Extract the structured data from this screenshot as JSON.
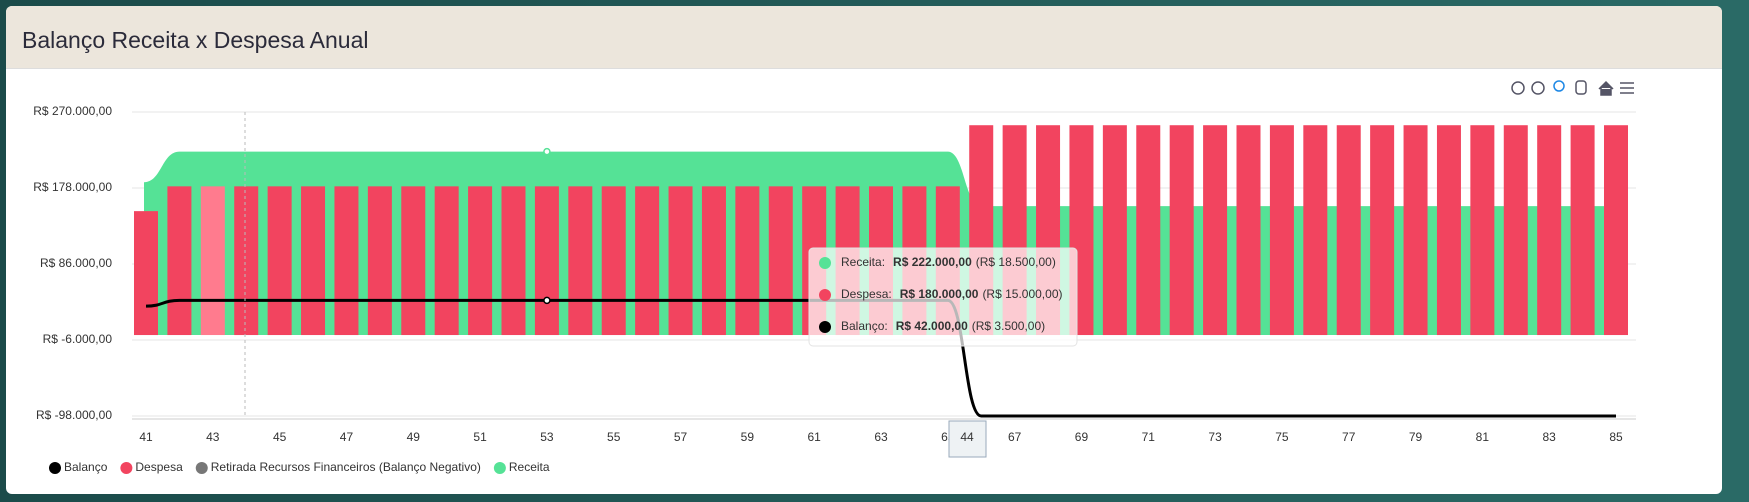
{
  "header": {
    "title": "Balanço Receita x Despesa Anual"
  },
  "chart_data": {
    "type": "bar",
    "categories": [
      41,
      null,
      43,
      null,
      45,
      null,
      47,
      null,
      49,
      null,
      51,
      null,
      53,
      null,
      55,
      null,
      57,
      null,
      59,
      null,
      61,
      null,
      63,
      null,
      65,
      null,
      67,
      null,
      69,
      null,
      71,
      null,
      73,
      null,
      75,
      null,
      77,
      null,
      79,
      null,
      81,
      null,
      83,
      null,
      85
    ],
    "ylim": [
      -98000,
      270000
    ],
    "yticks": [
      {
        "value": -98000,
        "label": "R$ -98.000,00"
      },
      {
        "value": -6000,
        "label": "R$ -6.000,00"
      },
      {
        "value": 86000,
        "label": "R$ 86.000,00"
      },
      {
        "value": 178000,
        "label": "R$ 178.000,00"
      },
      {
        "value": 270000,
        "label": "R$ 270.000,00"
      }
    ],
    "grid": true,
    "legend": "bottom-left",
    "series": [
      {
        "name": "Balanço",
        "type": "line",
        "color": "#000000",
        "values": [
          35000,
          42000,
          42000,
          42000,
          42000,
          42000,
          42000,
          42000,
          42000,
          42000,
          42000,
          42000,
          42000,
          42000,
          42000,
          42000,
          42000,
          42000,
          42000,
          42000,
          42000,
          42000,
          42000,
          42000,
          42000,
          -98000,
          -98000,
          -98000,
          -98000,
          -98000,
          -98000,
          -98000,
          -98000,
          -98000,
          -98000,
          -98000,
          -98000,
          -98000,
          -98000,
          -98000,
          -98000,
          -98000,
          -98000,
          -98000,
          -98000
        ]
      },
      {
        "name": "Despesa",
        "type": "bar",
        "color": "#f2445f",
        "values": [
          150000,
          180000,
          180000,
          180000,
          180000,
          180000,
          180000,
          180000,
          180000,
          180000,
          180000,
          180000,
          180000,
          180000,
          180000,
          180000,
          180000,
          180000,
          180000,
          180000,
          180000,
          180000,
          180000,
          180000,
          180000,
          254000,
          254000,
          254000,
          254000,
          254000,
          254000,
          254000,
          254000,
          254000,
          254000,
          254000,
          254000,
          254000,
          254000,
          254000,
          254000,
          254000,
          254000,
          254000,
          254000
        ]
      },
      {
        "name": "Retirada Recursos Financeiros (Balanço Negativo)",
        "type": "line",
        "color": "#777777",
        "values": [
          null,
          null,
          null,
          null,
          null,
          null,
          null,
          null,
          null,
          null,
          null,
          null,
          null,
          null,
          null,
          null,
          null,
          null,
          null,
          null,
          null,
          null,
          null,
          null,
          null,
          null,
          null,
          null,
          null,
          null,
          null,
          null,
          null,
          null,
          null,
          null,
          null,
          null,
          null,
          null,
          null,
          null,
          null,
          null,
          null
        ]
      },
      {
        "name": "Receita",
        "type": "area",
        "color": "#55e296",
        "values": [
          185000,
          222000,
          222000,
          222000,
          222000,
          222000,
          222000,
          222000,
          222000,
          222000,
          222000,
          222000,
          222000,
          222000,
          222000,
          222000,
          222000,
          222000,
          222000,
          222000,
          222000,
          222000,
          222000,
          222000,
          222000,
          156000,
          156000,
          156000,
          156000,
          156000,
          156000,
          156000,
          156000,
          156000,
          156000,
          156000,
          156000,
          156000,
          156000,
          156000,
          156000,
          156000,
          156000,
          156000,
          156000
        ]
      }
    ],
    "crosshair_label": "44",
    "tooltip": {
      "items": [
        {
          "label": "Receita:",
          "value": "R$ 222.000,00",
          "sub": "(R$ 18.500,00)"
        },
        {
          "label": "Despesa:",
          "value": "R$ 180.000,00",
          "sub": "(R$ 15.000,00)"
        },
        {
          "label": "Balanço:",
          "value": "R$ 42.000,00",
          "sub": "(R$ 3.500,00)"
        }
      ]
    }
  }
}
